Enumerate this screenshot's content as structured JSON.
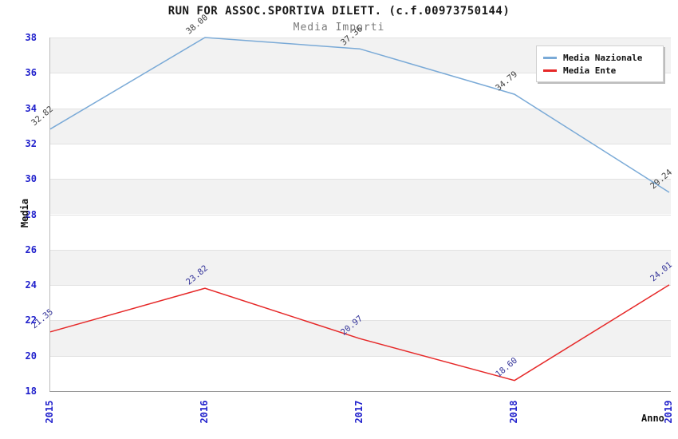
{
  "chart_data": {
    "type": "line",
    "title": "RUN FOR ASSOC.SPORTIVA DILETT. (c.f.00973750144)",
    "subtitle": "Media Importi",
    "xlabel": "Anno",
    "ylabel": "Media",
    "categories": [
      "2015",
      "2016",
      "2017",
      "2018",
      "2019"
    ],
    "ylim": [
      18,
      38
    ],
    "yticks": [
      18,
      20,
      22,
      24,
      26,
      28,
      30,
      32,
      34,
      36,
      38
    ],
    "grid": "alternating-horizontal-bands",
    "legend_position": "top-right",
    "series": [
      {
        "name": "Media Nazionale",
        "color": "#7aaad7",
        "label_color": "#404040",
        "values": [
          32.82,
          38.0,
          37.36,
          34.79,
          29.24
        ]
      },
      {
        "name": "Media Ente",
        "color": "#e62828",
        "label_color": "#333399",
        "values": [
          21.35,
          23.82,
          20.97,
          18.6,
          24.01
        ]
      }
    ]
  },
  "colors": {
    "tick_label": "#2121cc",
    "band_gray": "#f2f2f2",
    "gridline": "#e2e2e2",
    "axis_line": "#999999",
    "title_text": "#1a1a1a",
    "subtitle_text": "#7a7a7a"
  }
}
